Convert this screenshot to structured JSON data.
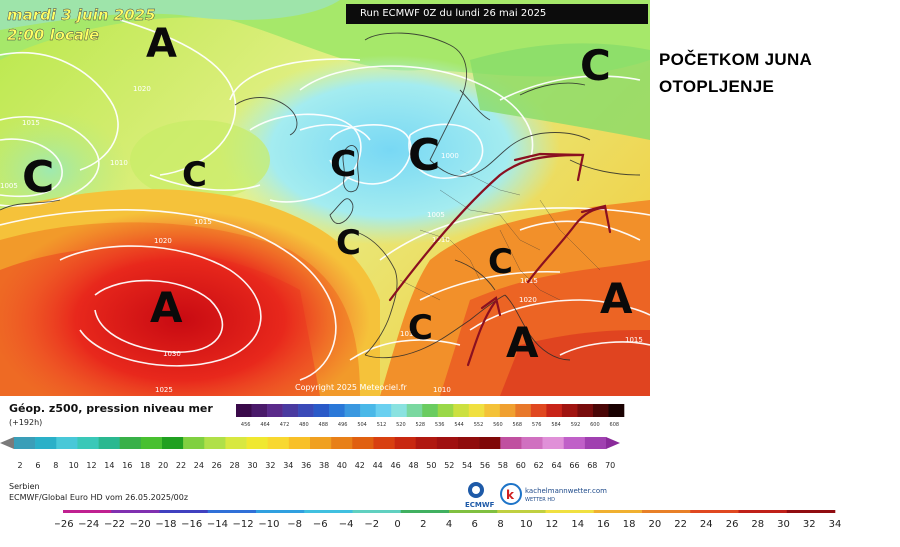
{
  "map": {
    "date_line1": "mardi 3 juin 2025",
    "date_line2": "2:00 locale",
    "run_label": "Run ECMWF 0Z du lundi 26 mai 2025",
    "copyright": "Copyright 2025 Meteociel.fr",
    "pressure_labels": [
      "1020",
      "1015",
      "1010",
      "1005",
      "1015",
      "1020",
      "1030",
      "1025",
      "1000",
      "1005",
      "1010",
      "1015",
      "1020",
      "1015",
      "1010",
      "1015"
    ],
    "systems": [
      {
        "letter": "A",
        "kind": "high"
      },
      {
        "letter": "C",
        "kind": "low"
      },
      {
        "letter": "C",
        "kind": "low"
      },
      {
        "letter": "C",
        "kind": "low"
      },
      {
        "letter": "C",
        "kind": "low"
      },
      {
        "letter": "C",
        "kind": "low"
      },
      {
        "letter": "A",
        "kind": "high"
      },
      {
        "letter": "C",
        "kind": "low"
      },
      {
        "letter": "C",
        "kind": "low"
      },
      {
        "letter": "C",
        "kind": "low"
      },
      {
        "letter": "A",
        "kind": "high"
      },
      {
        "letter": "A",
        "kind": "high"
      }
    ]
  },
  "headline": {
    "line1": "POČETKOM JUNA",
    "line2": "OTOPLJENJE"
  },
  "legend": {
    "title": "Géop. z500, pression niveau mer",
    "subtitle": "(+192h)",
    "pressure_ticks": [
      "456",
      "464",
      "472",
      "480",
      "488",
      "496",
      "504",
      "512",
      "520",
      "528",
      "536",
      "544",
      "552",
      "560",
      "568",
      "576",
      "584",
      "592",
      "600",
      "608"
    ],
    "temp_ticks": [
      "2",
      "6",
      "8",
      "10",
      "12",
      "14",
      "16",
      "18",
      "20",
      "22",
      "24",
      "26",
      "28",
      "30",
      "32",
      "34",
      "36",
      "38",
      "40",
      "42",
      "44",
      "46",
      "48",
      "50",
      "52",
      "54",
      "56",
      "58",
      "60",
      "62",
      "64",
      "66",
      "68",
      "70"
    ]
  },
  "meta": {
    "country": "Serbien",
    "model": "ECMWF/Global Euro HD vom  26.05.2025/00z"
  },
  "logos": {
    "ecmwf": "ECMWF",
    "kachelmann": "kachelmannwetter.com",
    "kachelmann_sub": "WETTER HD"
  },
  "bottom_scale": {
    "ticks": [
      "−26",
      "−24",
      "−22",
      "−20",
      "−18",
      "−16",
      "−14",
      "−12",
      "−10",
      "−8",
      "−6",
      "−4",
      "−2",
      "0",
      "2",
      "4",
      "6",
      "8",
      "10",
      "12",
      "14",
      "16",
      "18",
      "20",
      "22",
      "24",
      "26",
      "28",
      "30",
      "32",
      "34"
    ]
  },
  "colors": {
    "arrow": "#8a1020",
    "isobar": "#ffffff",
    "coast": "#2a2a2a",
    "headline": "#000000"
  }
}
